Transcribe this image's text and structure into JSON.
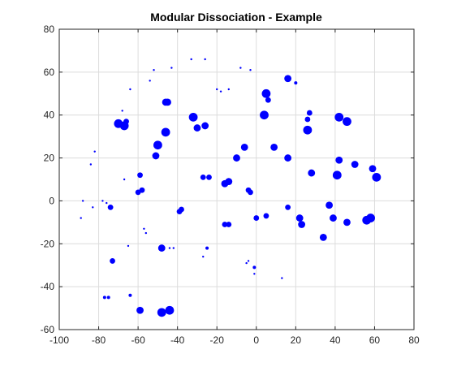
{
  "chart_data": {
    "type": "scatter",
    "title": "Modular Dissociation - Example",
    "xlabel": "",
    "ylabel": "",
    "xlim": [
      -100,
      80
    ],
    "ylim": [
      -60,
      80
    ],
    "xticks": [
      -100,
      -80,
      -60,
      -40,
      -20,
      0,
      20,
      40,
      60,
      80
    ],
    "yticks": [
      -60,
      -40,
      -20,
      0,
      20,
      40,
      60,
      80
    ],
    "grid": true,
    "colors": {
      "marker": "#0000ff",
      "grid": "#dcdcdc",
      "axis": "#262626"
    },
    "marker_size_unit": "relative, larger value = larger dot",
    "points": [
      {
        "x": -33,
        "y": 66,
        "s": 1
      },
      {
        "x": -26,
        "y": 66,
        "s": 1
      },
      {
        "x": -43,
        "y": 62,
        "s": 1
      },
      {
        "x": -52,
        "y": 61,
        "s": 1
      },
      {
        "x": -8,
        "y": 62,
        "s": 1
      },
      {
        "x": -3,
        "y": 61,
        "s": 1
      },
      {
        "x": -54,
        "y": 56,
        "s": 1
      },
      {
        "x": -64,
        "y": 52,
        "s": 1
      },
      {
        "x": -20,
        "y": 52,
        "s": 1
      },
      {
        "x": -18,
        "y": 51,
        "s": 1
      },
      {
        "x": -14,
        "y": 52,
        "s": 1
      },
      {
        "x": 16,
        "y": 57,
        "s": 4
      },
      {
        "x": 20,
        "y": 55,
        "s": 2
      },
      {
        "x": 5,
        "y": 50,
        "s": 5
      },
      {
        "x": 6,
        "y": 47,
        "s": 3
      },
      {
        "x": -46,
        "y": 46,
        "s": 4
      },
      {
        "x": -45,
        "y": 46,
        "s": 4
      },
      {
        "x": -68,
        "y": 42,
        "s": 1
      },
      {
        "x": 27,
        "y": 41,
        "s": 3
      },
      {
        "x": 26,
        "y": 38,
        "s": 3
      },
      {
        "x": -32,
        "y": 39,
        "s": 5
      },
      {
        "x": 4,
        "y": 40,
        "s": 5
      },
      {
        "x": 42,
        "y": 39,
        "s": 5
      },
      {
        "x": 46,
        "y": 37,
        "s": 5
      },
      {
        "x": -70,
        "y": 36,
        "s": 5
      },
      {
        "x": -67,
        "y": 35,
        "s": 5
      },
      {
        "x": -66,
        "y": 37,
        "s": 3
      },
      {
        "x": -26,
        "y": 35,
        "s": 4
      },
      {
        "x": -30,
        "y": 34,
        "s": 4
      },
      {
        "x": 26,
        "y": 33,
        "s": 5
      },
      {
        "x": -46,
        "y": 32,
        "s": 5
      },
      {
        "x": -50,
        "y": 26,
        "s": 5
      },
      {
        "x": -6,
        "y": 25,
        "s": 4
      },
      {
        "x": 9,
        "y": 25,
        "s": 4
      },
      {
        "x": -82,
        "y": 23,
        "s": 1
      },
      {
        "x": -51,
        "y": 21,
        "s": 4
      },
      {
        "x": -10,
        "y": 20,
        "s": 4
      },
      {
        "x": 16,
        "y": 20,
        "s": 4
      },
      {
        "x": 42,
        "y": 19,
        "s": 4
      },
      {
        "x": -84,
        "y": 17,
        "s": 1
      },
      {
        "x": 50,
        "y": 17,
        "s": 4
      },
      {
        "x": 59,
        "y": 15,
        "s": 4
      },
      {
        "x": 28,
        "y": 13,
        "s": 4
      },
      {
        "x": -59,
        "y": 12,
        "s": 3
      },
      {
        "x": -27,
        "y": 11,
        "s": 3
      },
      {
        "x": -24,
        "y": 11,
        "s": 3
      },
      {
        "x": 41,
        "y": 12,
        "s": 5
      },
      {
        "x": 61,
        "y": 11,
        "s": 5
      },
      {
        "x": -67,
        "y": 10,
        "s": 1
      },
      {
        "x": -16,
        "y": 8,
        "s": 4
      },
      {
        "x": -14,
        "y": 9,
        "s": 4
      },
      {
        "x": -4,
        "y": 5,
        "s": 3
      },
      {
        "x": -3,
        "y": 4,
        "s": 3
      },
      {
        "x": -58,
        "y": 5,
        "s": 3
      },
      {
        "x": -60,
        "y": 4,
        "s": 3
      },
      {
        "x": -88,
        "y": 0,
        "s": 1
      },
      {
        "x": -78,
        "y": 0,
        "s": 1
      },
      {
        "x": -76,
        "y": -1,
        "s": 1
      },
      {
        "x": -83,
        "y": -3,
        "s": 1
      },
      {
        "x": -74,
        "y": -3,
        "s": 3
      },
      {
        "x": -38,
        "y": -4,
        "s": 3
      },
      {
        "x": -39,
        "y": -5,
        "s": 3
      },
      {
        "x": 16,
        "y": -3,
        "s": 3
      },
      {
        "x": 37,
        "y": -2,
        "s": 4
      },
      {
        "x": 0,
        "y": -8,
        "s": 3
      },
      {
        "x": 5,
        "y": -7,
        "s": 3
      },
      {
        "x": 22,
        "y": -8,
        "s": 4
      },
      {
        "x": 39,
        "y": -8,
        "s": 4
      },
      {
        "x": 46,
        "y": -10,
        "s": 4
      },
      {
        "x": 56,
        "y": -9,
        "s": 5
      },
      {
        "x": 58,
        "y": -8,
        "s": 5
      },
      {
        "x": -89,
        "y": -8,
        "s": 1
      },
      {
        "x": 23,
        "y": -11,
        "s": 4
      },
      {
        "x": -16,
        "y": -11,
        "s": 3
      },
      {
        "x": -14,
        "y": -11,
        "s": 3
      },
      {
        "x": -57,
        "y": -13,
        "s": 1
      },
      {
        "x": -56,
        "y": -15,
        "s": 1
      },
      {
        "x": 34,
        "y": -17,
        "s": 4
      },
      {
        "x": -65,
        "y": -21,
        "s": 1
      },
      {
        "x": -48,
        "y": -22,
        "s": 4
      },
      {
        "x": -44,
        "y": -22,
        "s": 1
      },
      {
        "x": -42,
        "y": -22,
        "s": 1
      },
      {
        "x": -25,
        "y": -22,
        "s": 2
      },
      {
        "x": -27,
        "y": -26,
        "s": 1
      },
      {
        "x": -73,
        "y": -28,
        "s": 3
      },
      {
        "x": -4,
        "y": -28,
        "s": 1
      },
      {
        "x": -5,
        "y": -29,
        "s": 1
      },
      {
        "x": -1,
        "y": -31,
        "s": 2
      },
      {
        "x": -1,
        "y": -34,
        "s": 1
      },
      {
        "x": 13,
        "y": -36,
        "s": 1
      },
      {
        "x": -64,
        "y": -44,
        "s": 2
      },
      {
        "x": -77,
        "y": -45,
        "s": 2
      },
      {
        "x": -75,
        "y": -45,
        "s": 2
      },
      {
        "x": -59,
        "y": -51,
        "s": 4
      },
      {
        "x": -48,
        "y": -52,
        "s": 5
      },
      {
        "x": -44,
        "y": -51,
        "s": 5
      }
    ]
  }
}
